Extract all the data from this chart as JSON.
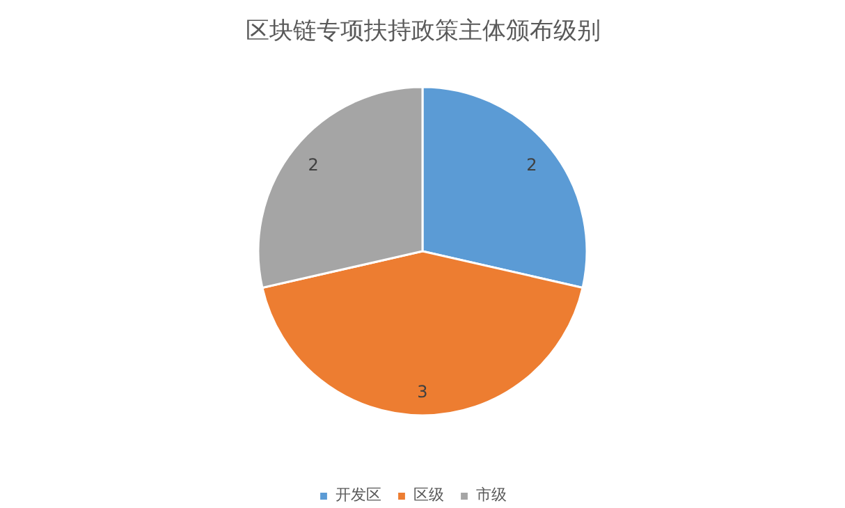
{
  "chart_data": {
    "type": "pie",
    "title": "区块链专项扶持政策主体颁布级别",
    "categories": [
      "开发区",
      "区级",
      "市级"
    ],
    "values": [
      2,
      3,
      2
    ],
    "colors": [
      "#5b9bd5",
      "#ed7d31",
      "#a5a5a5"
    ],
    "data_labels": true,
    "legend": "bottom"
  }
}
